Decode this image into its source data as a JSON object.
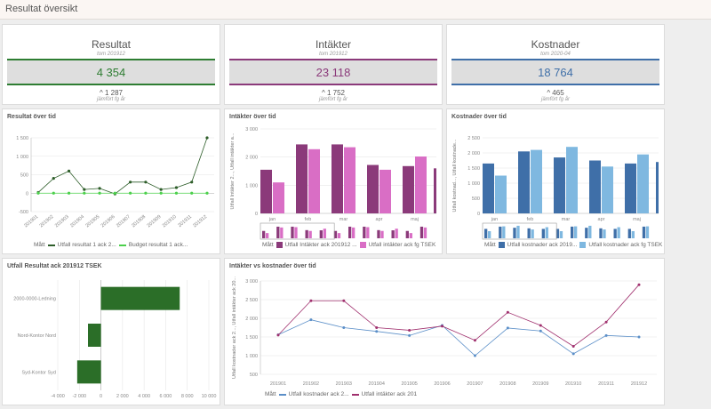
{
  "app": {
    "title": "Resultat översikt"
  },
  "kpis": {
    "resultat": {
      "title": "Resultat",
      "sub": "tom 201912",
      "value": "4 354",
      "delta": "^ 1 287",
      "period": "jämfört fg år",
      "color": "#2e7d32"
    },
    "intakter": {
      "title": "Intäkter",
      "sub": "tom 201912",
      "value": "23 118",
      "delta": "^ 1 752",
      "period": "jämfört fg år",
      "color": "#8b3a7a"
    },
    "kostnader": {
      "title": "Kostnader",
      "sub": "tom 2020-04",
      "value": "18 764",
      "delta": "^ 465",
      "period": "jämfört fg år",
      "color": "#3f6fa8"
    }
  },
  "colors": {
    "green_dark": "#2e5e2a",
    "green_light": "#4cd04c",
    "purple_dark": "#8b3a7a",
    "purple_light": "#d96ec5",
    "blue_dark": "#3f6fa8",
    "blue_light": "#7fb8e0",
    "bar_green": "#2b6e28",
    "line_blue": "#5b8fc8",
    "line_purple": "#a0306e"
  },
  "charts": {
    "resultat_tid": {
      "title": "Resultat över tid",
      "legend_label": "Mått",
      "legend_a": "Utfall resultat 1 ack 2...",
      "legend_b": "Budget resultat 1 ack..."
    },
    "intakter_tid": {
      "title": "Intäkter över tid",
      "ylabel": "Utfall Intäkter 2..., Utfall intäkter a...",
      "legend_label": "Mått",
      "legend_a": "Utfall Intäkter ack 201912 ...",
      "legend_b": "Utfall intäkter ack fg TSEK"
    },
    "kostnader_tid": {
      "title": "Kostnader över tid",
      "ylabel": "Utfall kostnad..., Utfall kostnade...",
      "legend_label": "Mått",
      "legend_a": "Utfall kostnader ack 2019...",
      "legend_b": "Utfall kostnader ack fg TSEK"
    },
    "utfall_resultat": {
      "title": "Utfall Resultat ack 201912 TSEK"
    },
    "ink_vs_kost": {
      "title": "Intäkter vs kostnader över tid",
      "ylabel": "Utfall kostnader ack 2..., Utfall intäkter ack 20...",
      "legend_label": "Mått",
      "legend_a": "Utfall kostnader ack 2...",
      "legend_b": "Utfall intäkter ack 201"
    }
  },
  "chart_data": [
    {
      "id": "resultat_tid",
      "type": "line",
      "x": [
        "201901",
        "201902",
        "201903",
        "201904",
        "201905",
        "201906",
        "201907",
        "201908",
        "201909",
        "201910",
        "201911",
        "201912"
      ],
      "series": [
        {
          "name": "Utfall resultat 1 ack 2...",
          "values": [
            20,
            400,
            600,
            100,
            130,
            -20,
            300,
            300,
            100,
            150,
            300,
            1500
          ]
        },
        {
          "name": "Budget resultat 1 ack...",
          "values": [
            0,
            0,
            0,
            0,
            0,
            0,
            0,
            0,
            0,
            0,
            0,
            0
          ]
        }
      ],
      "yticks": [
        "1 500",
        "1 000",
        "500",
        "0",
        "-500"
      ],
      "ylim": [
        -500,
        1500
      ]
    },
    {
      "id": "intakter_tid",
      "type": "bar",
      "categories": [
        "jan",
        "feb",
        "mar",
        "apr",
        "maj"
      ],
      "series": [
        {
          "name": "Utfall Intäkter ack 201912 ...",
          "values": [
            1550,
            2450,
            2450,
            1720,
            1680
          ]
        },
        {
          "name": "Utfall intäkter ack fg TSEK",
          "values": [
            1100,
            2280,
            2350,
            1550,
            2020
          ]
        }
      ],
      "yticks": [
        "3 000",
        "2 000",
        "1 000",
        "0"
      ],
      "ylim": [
        0,
        3000
      ]
    },
    {
      "id": "kostnader_tid",
      "type": "bar",
      "categories": [
        "jan",
        "feb",
        "mar",
        "apr",
        "maj"
      ],
      "series": [
        {
          "name": "Utfall kostnader ack 2019...",
          "values": [
            1650,
            2050,
            1850,
            1750,
            1650
          ]
        },
        {
          "name": "Utfall kostnader ack fg TSEK",
          "values": [
            1250,
            2100,
            2200,
            1550,
            1950
          ]
        }
      ],
      "yticks": [
        "2 500",
        "2 000",
        "1 500",
        "1 000",
        "500",
        "0"
      ],
      "ylim": [
        0,
        2500
      ]
    },
    {
      "id": "utfall_resultat",
      "type": "bar",
      "categories": [
        "2000-0000-Ledning",
        "Nord-Kontor Nord",
        "Syd-Kontor Syd"
      ],
      "values": [
        7300,
        -1200,
        -2200
      ],
      "xticks": [
        "-4 000",
        "-2 000",
        "0",
        "2 000",
        "4 000",
        "6 000",
        "8 000",
        "10 000"
      ],
      "xlim": [
        -4000,
        10000
      ]
    },
    {
      "id": "ink_vs_kost",
      "type": "line",
      "x": [
        "201901",
        "201902",
        "201903",
        "201904",
        "201905",
        "201906",
        "201907",
        "201908",
        "201909",
        "201910",
        "201911",
        "201912"
      ],
      "series": [
        {
          "name": "Utfall kostnader ack 2...",
          "values": [
            1560,
            1960,
            1750,
            1650,
            1540,
            1810,
            1000,
            1740,
            1660,
            1050,
            1540,
            1500
          ]
        },
        {
          "name": "Utfall intäkter ack 201",
          "values": [
            1550,
            2470,
            2470,
            1750,
            1680,
            1790,
            1410,
            2160,
            1810,
            1250,
            1900,
            2900
          ]
        }
      ],
      "yticks": [
        "3 000",
        "2 500",
        "2 000",
        "1 500",
        "1 000",
        "500"
      ],
      "ylim": [
        500,
        3000
      ]
    }
  ]
}
